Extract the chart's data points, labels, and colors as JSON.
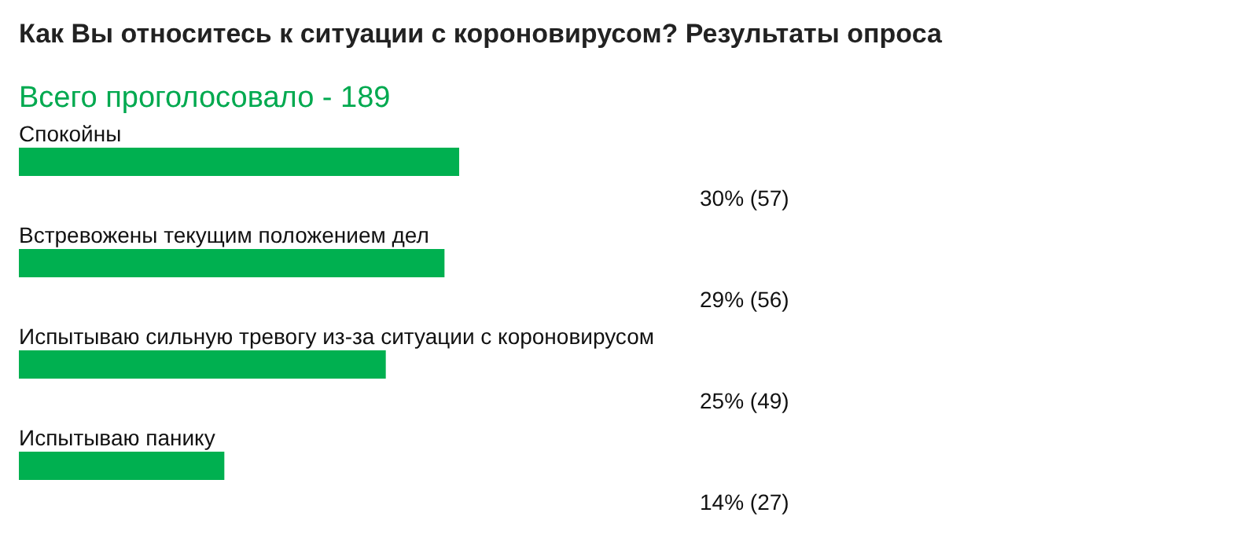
{
  "chart_data": {
    "type": "bar",
    "orientation": "horizontal",
    "title": "Как Вы относитесь к ситуации с короновирусом? Результаты опроса",
    "subtitle": "Всего проголосовало - 189",
    "categories": [
      "Спокойны",
      "Встревожены текущим положением дел",
      "Испытываю сильную тревогу из-за ситуации с короновирусом",
      "Испытываю панику"
    ],
    "values": [
      30,
      29,
      25,
      14
    ],
    "value_labels": [
      "30% (57)",
      "29% (56)",
      "25% (49)",
      "14% (27)"
    ],
    "color": "#00b050"
  }
}
